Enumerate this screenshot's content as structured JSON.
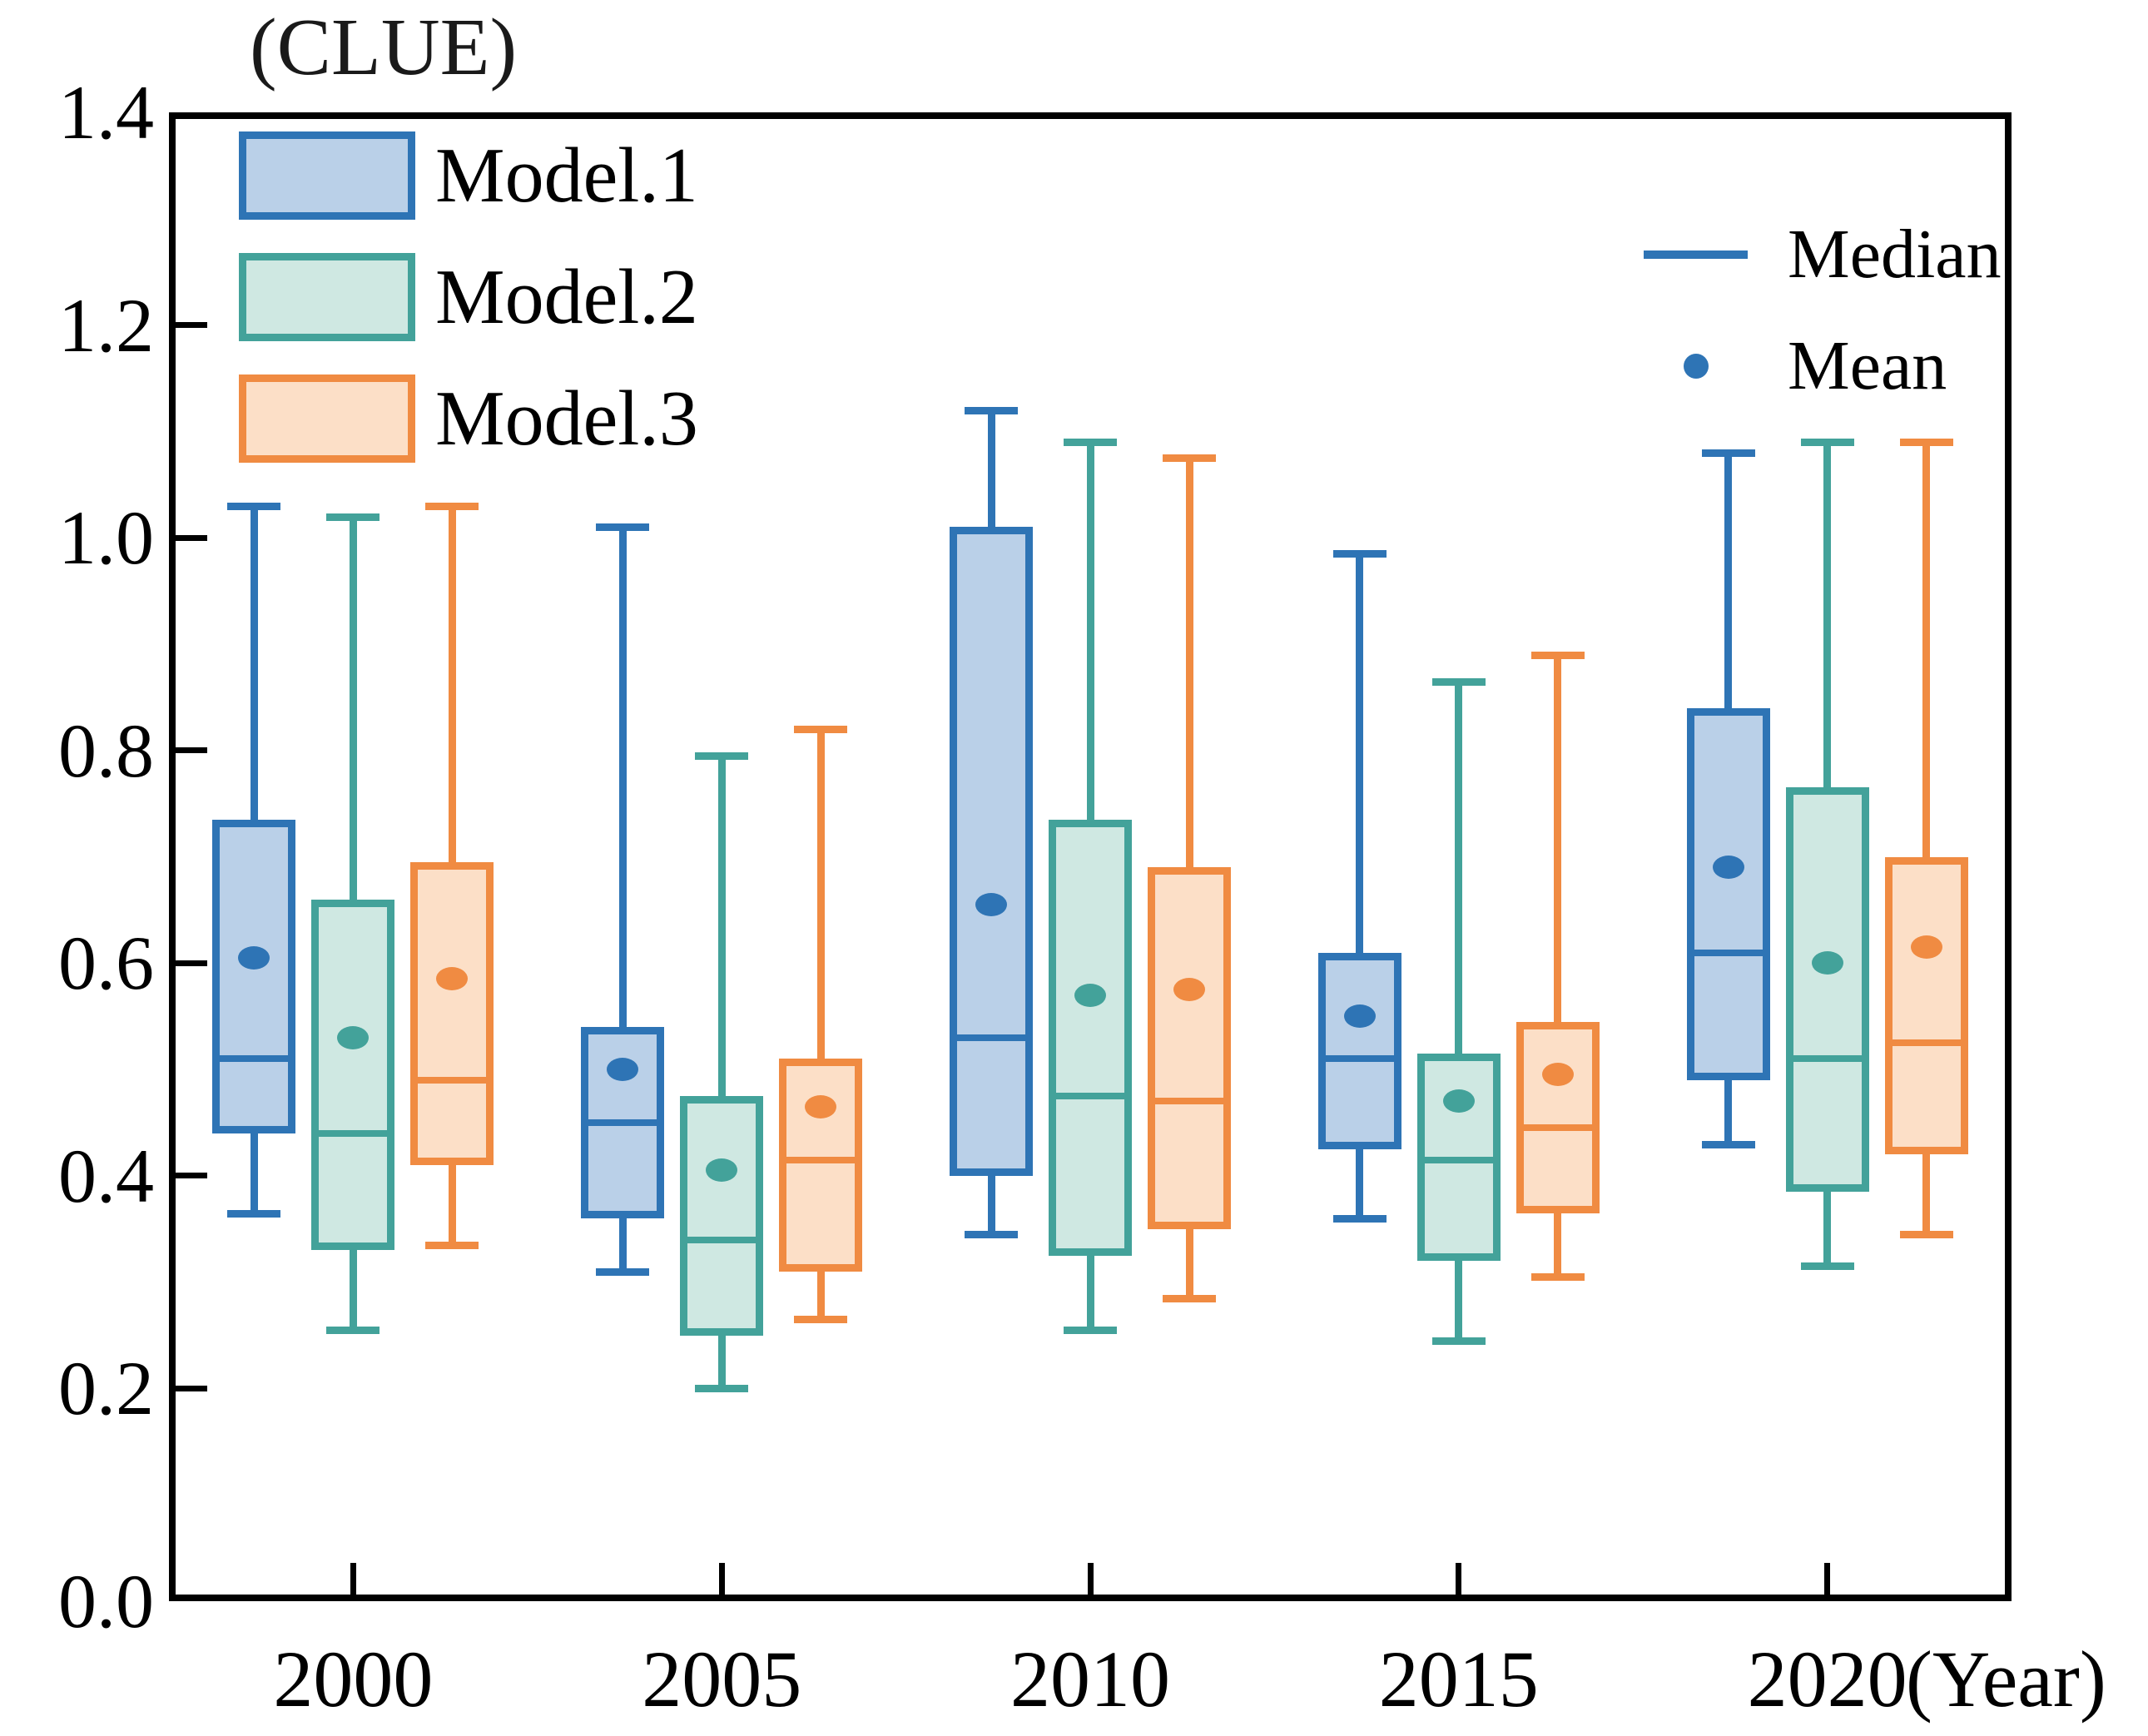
{
  "title": "(CLUE)",
  "x_axis_label": "(Year)",
  "legend": {
    "median_label": "Median",
    "mean_label": "Mean"
  },
  "colors": {
    "axis": "#000000",
    "model1_stroke": "#2e74b5",
    "model1_fill": "#bad0e8",
    "model2_stroke": "#43a29a",
    "model2_fill": "#cfe8e2",
    "model3_stroke": "#f08b42",
    "model3_fill": "#fcdfc7",
    "stat_legend": "#2e74b5"
  },
  "chart_data": {
    "type": "boxplot",
    "title": "(CLUE)",
    "xlabel": "(Year)",
    "ylabel": "",
    "categories": [
      "2000",
      "2005",
      "2010",
      "2015",
      "2020"
    ],
    "y_ticks": [
      "0.0",
      "0.2",
      "0.4",
      "0.6",
      "0.8",
      "1.0",
      "1.2",
      "1.4"
    ],
    "ylim": [
      0,
      1.4
    ],
    "grid": false,
    "legend_position": "top-left",
    "series": [
      {
        "name": "Model.1",
        "stroke": "#2e74b5",
        "fill": "#bad0e8",
        "boxes": [
          {
            "low": 0.365,
            "q1": 0.44,
            "median": 0.51,
            "q3": 0.735,
            "high": 1.03,
            "mean": 0.605
          },
          {
            "low": 0.31,
            "q1": 0.36,
            "median": 0.45,
            "q3": 0.54,
            "high": 1.01,
            "mean": 0.5
          },
          {
            "low": 0.345,
            "q1": 0.4,
            "median": 0.53,
            "q3": 1.01,
            "high": 1.12,
            "mean": 0.655
          },
          {
            "low": 0.36,
            "q1": 0.425,
            "median": 0.51,
            "q3": 0.61,
            "high": 0.985,
            "mean": 0.55
          },
          {
            "low": 0.43,
            "q1": 0.49,
            "median": 0.61,
            "q3": 0.84,
            "high": 1.08,
            "mean": 0.69
          }
        ]
      },
      {
        "name": "Model.2",
        "stroke": "#43a29a",
        "fill": "#cfe8e2",
        "boxes": [
          {
            "low": 0.255,
            "q1": 0.33,
            "median": 0.44,
            "q3": 0.66,
            "high": 1.02,
            "mean": 0.53
          },
          {
            "low": 0.2,
            "q1": 0.25,
            "median": 0.34,
            "q3": 0.475,
            "high": 0.795,
            "mean": 0.405
          },
          {
            "low": 0.255,
            "q1": 0.325,
            "median": 0.475,
            "q3": 0.735,
            "high": 1.09,
            "mean": 0.57
          },
          {
            "low": 0.245,
            "q1": 0.32,
            "median": 0.415,
            "q3": 0.515,
            "high": 0.865,
            "mean": 0.47
          },
          {
            "low": 0.315,
            "q1": 0.385,
            "median": 0.51,
            "q3": 0.765,
            "high": 1.09,
            "mean": 0.6
          }
        ]
      },
      {
        "name": "Model.3",
        "stroke": "#f08b42",
        "fill": "#fcdfc7",
        "boxes": [
          {
            "low": 0.335,
            "q1": 0.41,
            "median": 0.49,
            "q3": 0.695,
            "high": 1.03,
            "mean": 0.585
          },
          {
            "low": 0.265,
            "q1": 0.31,
            "median": 0.415,
            "q3": 0.51,
            "high": 0.82,
            "mean": 0.465
          },
          {
            "low": 0.285,
            "q1": 0.35,
            "median": 0.47,
            "q3": 0.69,
            "high": 1.075,
            "mean": 0.575
          },
          {
            "low": 0.305,
            "q1": 0.365,
            "median": 0.445,
            "q3": 0.545,
            "high": 0.89,
            "mean": 0.495
          },
          {
            "low": 0.345,
            "q1": 0.42,
            "median": 0.525,
            "q3": 0.7,
            "high": 1.09,
            "mean": 0.615
          }
        ]
      }
    ]
  }
}
